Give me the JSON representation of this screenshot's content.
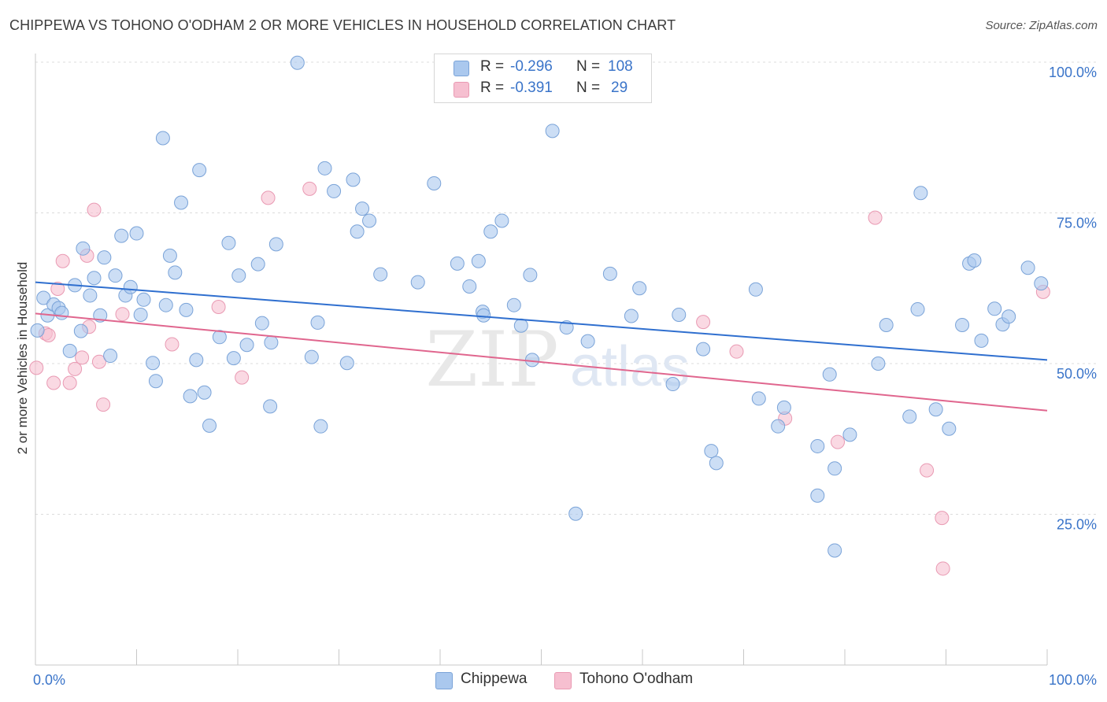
{
  "title": "CHIPPEWA VS TOHONO O'ODHAM 2 OR MORE VEHICLES IN HOUSEHOLD CORRELATION CHART",
  "source": "Source: ZipAtlas.com",
  "legend": {
    "rows": [
      {
        "r_label": "R =",
        "r_value": "-0.296",
        "n_label": "N =",
        "n_value": "108"
      },
      {
        "r_label": "R =",
        "r_value": "-0.391",
        "n_label": "N =",
        "n_value": "29"
      }
    ]
  },
  "watermark": {
    "zip": "ZIP",
    "atlas": "atlas"
  },
  "colors": {
    "chippewa_fill": "#aac8ee",
    "chippewa_stroke": "#7aa3d8",
    "chippewa_line": "#2f6fcf",
    "tohono_fill": "#f6bfd0",
    "tohono_stroke": "#e99ab3",
    "tohono_line": "#e0668e",
    "tick_label": "#3a74c9",
    "grid": "#dcdcdc"
  },
  "chart_data": {
    "type": "scatter",
    "title": "CHIPPEWA VS TOHONO O'ODHAM 2 OR MORE VEHICLES IN HOUSEHOLD CORRELATION CHART",
    "xlabel": "",
    "ylabel": "2 or more Vehicles in Household",
    "xlim": [
      0,
      100
    ],
    "ylim": [
      0,
      100
    ],
    "x_tick_labels": [
      "0.0%",
      "100.0%"
    ],
    "y_ticks": [
      25,
      50,
      75,
      100
    ],
    "y_tick_labels": [
      "25.0%",
      "50.0%",
      "75.0%",
      "100.0%"
    ],
    "grid": true,
    "legend_position": "top-center",
    "series": [
      {
        "name": "Chippewa",
        "r": -0.296,
        "n": 108,
        "trend": {
          "x": [
            0,
            100
          ],
          "y": [
            63.5,
            50.6
          ]
        },
        "points": [
          [
            0.2,
            55.5
          ],
          [
            0.8,
            60.9
          ],
          [
            1.2,
            58.0
          ],
          [
            1.8,
            59.8
          ],
          [
            2.3,
            59.2
          ],
          [
            2.6,
            58.4
          ],
          [
            3.4,
            52.1
          ],
          [
            3.9,
            63.0
          ],
          [
            4.5,
            55.4
          ],
          [
            4.7,
            69.1
          ],
          [
            5.4,
            61.3
          ],
          [
            5.8,
            64.2
          ],
          [
            6.4,
            58.0
          ],
          [
            6.8,
            67.6
          ],
          [
            7.4,
            51.3
          ],
          [
            7.9,
            64.6
          ],
          [
            8.5,
            71.2
          ],
          [
            8.9,
            61.3
          ],
          [
            9.4,
            62.7
          ],
          [
            10.0,
            71.6
          ],
          [
            10.4,
            58.1
          ],
          [
            10.7,
            60.6
          ],
          [
            11.6,
            50.1
          ],
          [
            11.9,
            47.1
          ],
          [
            12.6,
            87.4
          ],
          [
            12.9,
            59.7
          ],
          [
            13.3,
            67.9
          ],
          [
            13.8,
            65.1
          ],
          [
            14.4,
            76.7
          ],
          [
            14.9,
            58.9
          ],
          [
            15.3,
            44.6
          ],
          [
            15.9,
            50.6
          ],
          [
            16.2,
            82.1
          ],
          [
            16.7,
            45.2
          ],
          [
            17.2,
            39.7
          ],
          [
            18.2,
            54.4
          ],
          [
            19.1,
            70.0
          ],
          [
            19.6,
            50.9
          ],
          [
            20.1,
            64.6
          ],
          [
            20.9,
            53.1
          ],
          [
            22.0,
            66.5
          ],
          [
            22.4,
            56.7
          ],
          [
            23.2,
            42.9
          ],
          [
            23.3,
            53.5
          ],
          [
            23.8,
            69.8
          ],
          [
            25.9,
            99.9
          ],
          [
            27.3,
            51.1
          ],
          [
            27.9,
            56.8
          ],
          [
            28.2,
            39.6
          ],
          [
            28.6,
            82.4
          ],
          [
            29.5,
            78.6
          ],
          [
            30.8,
            50.1
          ],
          [
            31.4,
            80.5
          ],
          [
            31.8,
            71.9
          ],
          [
            32.3,
            75.7
          ],
          [
            33.0,
            73.7
          ],
          [
            34.1,
            64.8
          ],
          [
            37.8,
            63.5
          ],
          [
            39.4,
            79.9
          ],
          [
            41.7,
            66.6
          ],
          [
            42.9,
            62.8
          ],
          [
            43.8,
            67.0
          ],
          [
            44.2,
            58.6
          ],
          [
            44.3,
            58.0
          ],
          [
            45.0,
            71.9
          ],
          [
            46.1,
            73.7
          ],
          [
            47.3,
            59.7
          ],
          [
            48.0,
            56.3
          ],
          [
            48.9,
            64.7
          ],
          [
            49.1,
            50.6
          ],
          [
            51.1,
            88.6
          ],
          [
            52.5,
            56.0
          ],
          [
            53.4,
            25.1
          ],
          [
            54.6,
            53.7
          ],
          [
            56.8,
            64.9
          ],
          [
            58.9,
            57.9
          ],
          [
            59.7,
            62.5
          ],
          [
            63.0,
            46.6
          ],
          [
            63.6,
            58.1
          ],
          [
            66.0,
            52.4
          ],
          [
            66.8,
            35.5
          ],
          [
            67.3,
            33.5
          ],
          [
            71.2,
            62.3
          ],
          [
            71.5,
            44.2
          ],
          [
            73.4,
            39.6
          ],
          [
            74.0,
            42.7
          ],
          [
            77.3,
            36.3
          ],
          [
            77.3,
            28.1
          ],
          [
            78.5,
            48.2
          ],
          [
            79.0,
            19.0
          ],
          [
            79.0,
            32.6
          ],
          [
            80.5,
            38.2
          ],
          [
            83.3,
            50.0
          ],
          [
            84.1,
            56.4
          ],
          [
            86.4,
            41.2
          ],
          [
            87.2,
            59.0
          ],
          [
            87.5,
            78.3
          ],
          [
            89.0,
            42.4
          ],
          [
            90.3,
            39.2
          ],
          [
            91.6,
            56.4
          ],
          [
            92.3,
            66.6
          ],
          [
            92.8,
            67.1
          ],
          [
            93.5,
            53.8
          ],
          [
            94.8,
            59.1
          ],
          [
            95.6,
            56.5
          ],
          [
            96.2,
            57.8
          ],
          [
            98.1,
            65.9
          ],
          [
            99.4,
            63.3
          ]
        ]
      },
      {
        "name": "Tohono O'odham",
        "r": -0.391,
        "n": 29,
        "trend": {
          "x": [
            0,
            100
          ],
          "y": [
            58.3,
            42.2
          ]
        },
        "points": [
          [
            0.1,
            49.3
          ],
          [
            1.0,
            55.0
          ],
          [
            1.3,
            54.7
          ],
          [
            1.8,
            46.8
          ],
          [
            2.2,
            62.4
          ],
          [
            2.7,
            67.0
          ],
          [
            3.4,
            46.8
          ],
          [
            3.9,
            49.1
          ],
          [
            4.6,
            51.0
          ],
          [
            5.1,
            67.9
          ],
          [
            5.3,
            56.1
          ],
          [
            5.8,
            75.5
          ],
          [
            6.3,
            50.3
          ],
          [
            6.7,
            43.2
          ],
          [
            8.6,
            58.2
          ],
          [
            13.5,
            53.2
          ],
          [
            18.1,
            59.4
          ],
          [
            20.4,
            47.7
          ],
          [
            23.0,
            77.5
          ],
          [
            27.1,
            79.0
          ],
          [
            66.0,
            56.9
          ],
          [
            69.3,
            52.0
          ],
          [
            74.1,
            40.9
          ],
          [
            79.3,
            37.0
          ],
          [
            83.0,
            74.2
          ],
          [
            88.1,
            32.3
          ],
          [
            89.6,
            24.4
          ],
          [
            89.7,
            16.0
          ],
          [
            99.6,
            61.9
          ]
        ]
      }
    ]
  }
}
